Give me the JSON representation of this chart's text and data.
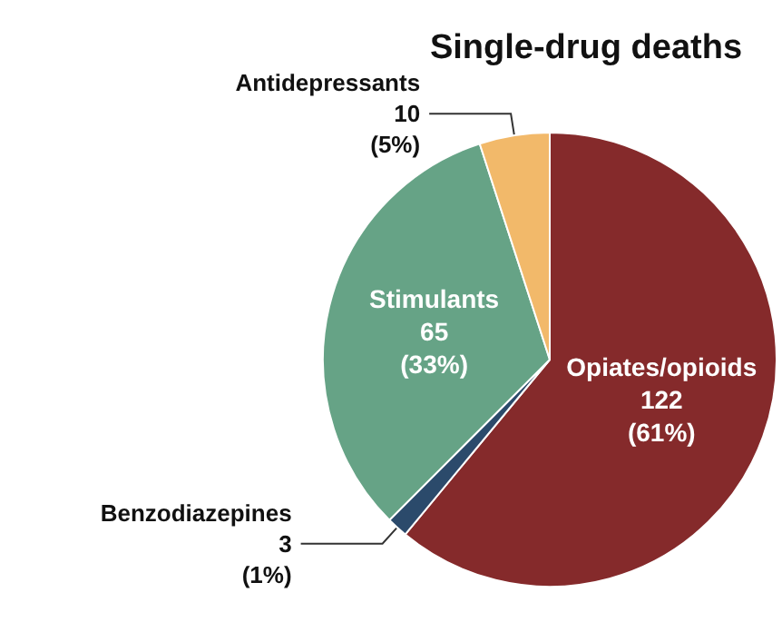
{
  "chart_data": {
    "type": "pie",
    "title": "Single-drug deaths",
    "categories": [
      "Opiates/opioids",
      "Benzodiazepines",
      "Stimulants",
      "Antidepressants"
    ],
    "values": [
      122,
      3,
      65,
      10
    ],
    "value_labels": [
      "122\n(61%)",
      "3\n(1%)",
      "65\n(33%)",
      "10\n(5%)"
    ],
    "colors": [
      "#852a2b",
      "#2b4a6b",
      "#66a386",
      "#f2b96a"
    ],
    "legend": false
  }
}
